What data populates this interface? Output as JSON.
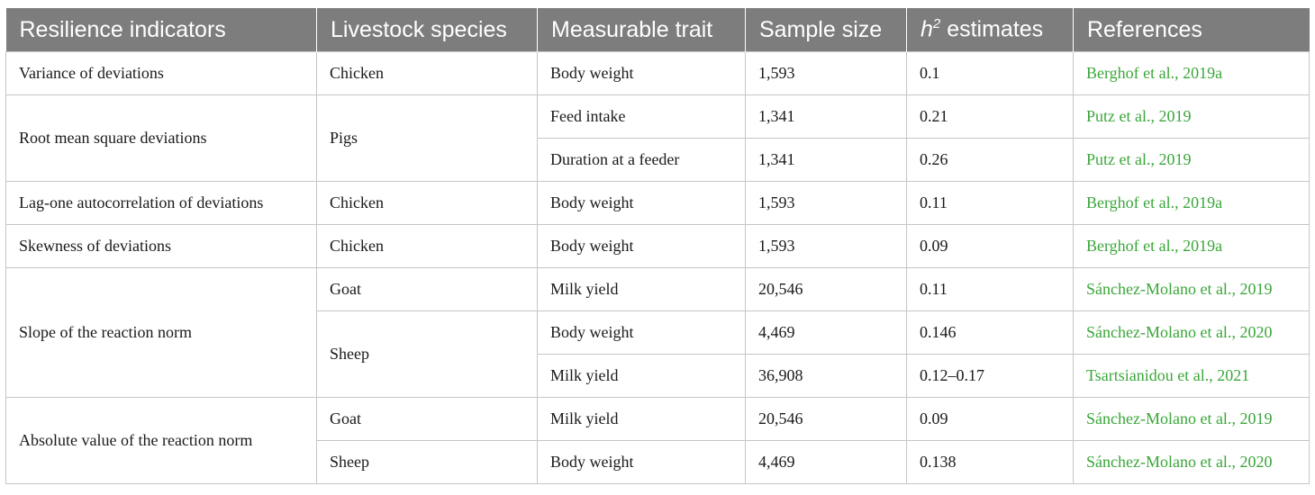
{
  "columns": [
    "Resilience indicators",
    "Livestock species",
    "Measurable trait",
    "Sample size",
    "h",
    "2",
    "estimates",
    "References"
  ],
  "header": {
    "indicator": "Resilience indicators",
    "species": "Livestock species",
    "trait": "Measurable trait",
    "sample": "Sample size",
    "h2_symbol": "h",
    "h2_sup": "2",
    "h2_rest": " estimates",
    "references": "References"
  },
  "rows": [
    {
      "indicator": "Variance of deviations",
      "species": "Chicken",
      "trait": "Body weight",
      "sample": "1,593",
      "h2": "0.1",
      "reference": "Berghof et al., 2019a"
    },
    {
      "indicator": "Root mean square deviations",
      "species": "Pigs",
      "trait": "Feed intake",
      "sample": "1,341",
      "h2": "0.21",
      "reference": "Putz et al., 2019"
    },
    {
      "trait": "Duration at a feeder",
      "sample": "1,341",
      "h2": "0.26",
      "reference": "Putz et al., 2019"
    },
    {
      "indicator": "Lag-one autocorrelation of deviations",
      "species": "Chicken",
      "trait": "Body weight",
      "sample": "1,593",
      "h2": "0.11",
      "reference": "Berghof et al., 2019a"
    },
    {
      "indicator": "Skewness of deviations",
      "species": "Chicken",
      "trait": "Body weight",
      "sample": "1,593",
      "h2": "0.09",
      "reference": "Berghof et al., 2019a"
    },
    {
      "indicator": "Slope of the reaction norm",
      "species": "Goat",
      "trait": "Milk yield",
      "sample": "20,546",
      "h2": "0.11",
      "reference": "Sánchez-Molano et al., 2019"
    },
    {
      "species": "Sheep",
      "trait": "Body weight",
      "sample": "4,469",
      "h2": "0.146",
      "reference": "Sánchez-Molano et al., 2020"
    },
    {
      "trait": "Milk yield",
      "sample": "36,908",
      "h2": "0.12–0.17",
      "reference": "Tsartsianidou et al., 2021"
    },
    {
      "indicator": "Absolute value of the reaction norm",
      "species": "Goat",
      "trait": "Milk yield",
      "sample": "20,546",
      "h2": "0.09",
      "reference": "Sánchez-Molano et al., 2019"
    },
    {
      "species": "Sheep",
      "trait": "Body weight",
      "sample": "4,469",
      "h2": "0.138",
      "reference": "Sánchez-Molano et al., 2020"
    }
  ]
}
